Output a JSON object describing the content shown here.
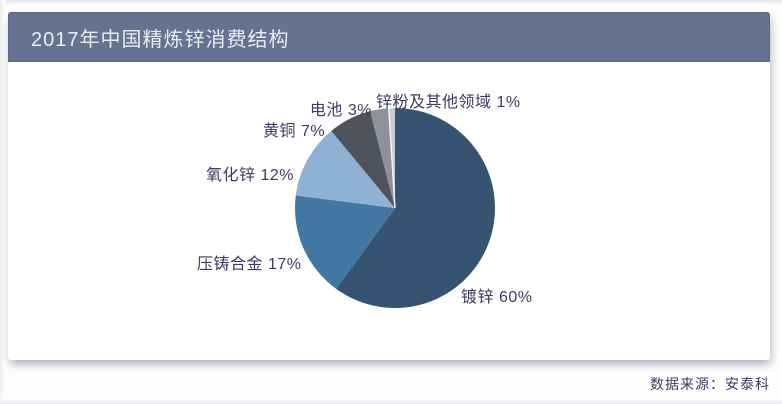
{
  "header": {
    "title": "2017年中国精炼锌消费结构"
  },
  "footer": {
    "source": "数据来源：安泰科"
  },
  "colors": {
    "header_bg": "#667390",
    "title_text": "#eaecf4",
    "card_bg": "#ffffff",
    "label_text": "#3f3a64",
    "slice_galvanized": "#365472",
    "slice_diecast": "#4277a4",
    "slice_zinc_oxide": "#8fb2d4",
    "slice_brass": "#4f545c",
    "slice_battery": "#8d9298",
    "slice_other": "#c9cdd2"
  },
  "chart_data": {
    "type": "pie",
    "title": "2017年中国精炼锌消费结构",
    "categories": [
      "镀锌",
      "压铸合金",
      "氧化锌",
      "黄铜",
      "电池",
      "锌粉及其他领域"
    ],
    "values": [
      60,
      17,
      12,
      7,
      3,
      1
    ],
    "unit": "%",
    "labels": [
      "镀锌 60%",
      "压铸合金 17%",
      "氧化锌 12%",
      "黄铜 7%",
      "电池 3%",
      "锌粉及其他领域 1%"
    ],
    "colors": [
      "#365472",
      "#4277a4",
      "#8fb2d4",
      "#4f545c",
      "#8d9298",
      "#c9cdd2"
    ],
    "start_angle_deg": 0,
    "direction": "clockwise",
    "legend_position": "none",
    "data_labels": "outside",
    "source": "数据来源：安泰科"
  }
}
